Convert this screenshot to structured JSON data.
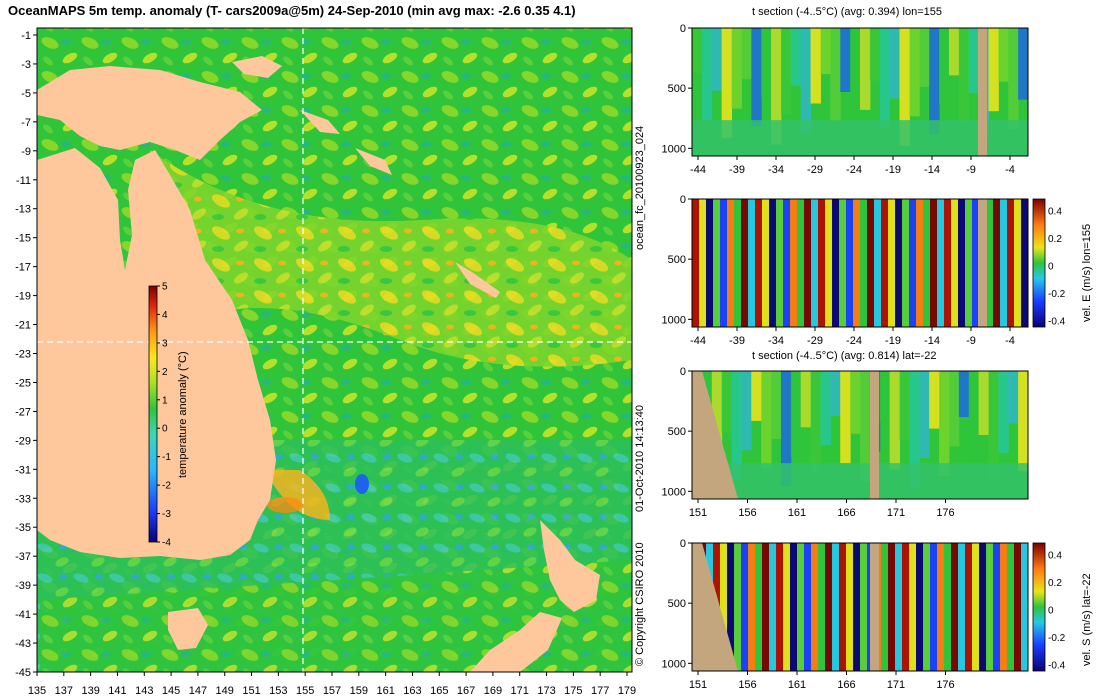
{
  "title": "OceanMAPS 5m temp. anomaly (T- cars2009a@5m) 24-Sep-2010 (min avg max: -2.6 0.35 4.1)",
  "map": {
    "lat_ticks": [
      "-1",
      "-3",
      "-5",
      "-7",
      "-9",
      "-11",
      "-13",
      "-15",
      "-17",
      "-19",
      "-21",
      "-23",
      "-25",
      "-27",
      "-29",
      "-31",
      "-33",
      "-35",
      "-37",
      "-39",
      "-41",
      "-43",
      "-45"
    ],
    "lon_ticks": [
      "135",
      "137",
      "139",
      "141",
      "143",
      "145",
      "147",
      "149",
      "151",
      "153",
      "155",
      "157",
      "159",
      "161",
      "163",
      "165",
      "167",
      "169",
      "171",
      "173",
      "175",
      "177",
      "179"
    ],
    "colorbar_label": "temperature anomaly (°C)",
    "colorbar_ticks": [
      "5",
      "4",
      "3",
      "2",
      "1",
      "0",
      "-1",
      "-2",
      "-3",
      "-4"
    ],
    "colors": {
      "ocean": "#27c23a",
      "land": "#ffc89c",
      "land_sections": "#c4a67e"
    }
  },
  "side_left_label": "ocean_fc_20100923_024",
  "side_left_label2": "01-Oct-2010 14:13:40",
  "copyright": "© Copyright CSIRO 2010",
  "panels": [
    {
      "title": "t section (-4..5°C) (avg: 0.394) lon=155",
      "y_ticks": [
        "0",
        "500",
        "1000"
      ],
      "x_ticks": [
        "-44",
        "-39",
        "-34",
        "-29",
        "-24",
        "-19",
        "-14",
        "-9",
        "-4"
      ],
      "colorbar_label": "",
      "colorbar_ticks": []
    },
    {
      "title": "",
      "y_ticks": [
        "0",
        "500",
        "1000"
      ],
      "x_ticks": [
        "-44",
        "-39",
        "-34",
        "-29",
        "-24",
        "-19",
        "-14",
        "-9",
        "-4"
      ],
      "colorbar_label": "vel. E (m/s) lon=155",
      "colorbar_ticks": [
        "0.4",
        "0.2",
        "0",
        "-0.2",
        "-0.4"
      ]
    },
    {
      "title": "t section (-4..5°C) (avg: 0.814) lat=-22",
      "y_ticks": [
        "0",
        "500",
        "1000"
      ],
      "x_ticks": [
        "151",
        "156",
        "161",
        "166",
        "171",
        "176"
      ],
      "colorbar_label": "",
      "colorbar_ticks": []
    },
    {
      "title": "",
      "y_ticks": [
        "0",
        "500",
        "1000"
      ],
      "x_ticks": [
        "151",
        "156",
        "161",
        "166",
        "171",
        "176"
      ],
      "colorbar_label": "vel. S (m/s) lat=-22",
      "colorbar_ticks": [
        "0.4",
        "0.2",
        "0",
        "-0.2",
        "-0.4"
      ]
    }
  ]
}
